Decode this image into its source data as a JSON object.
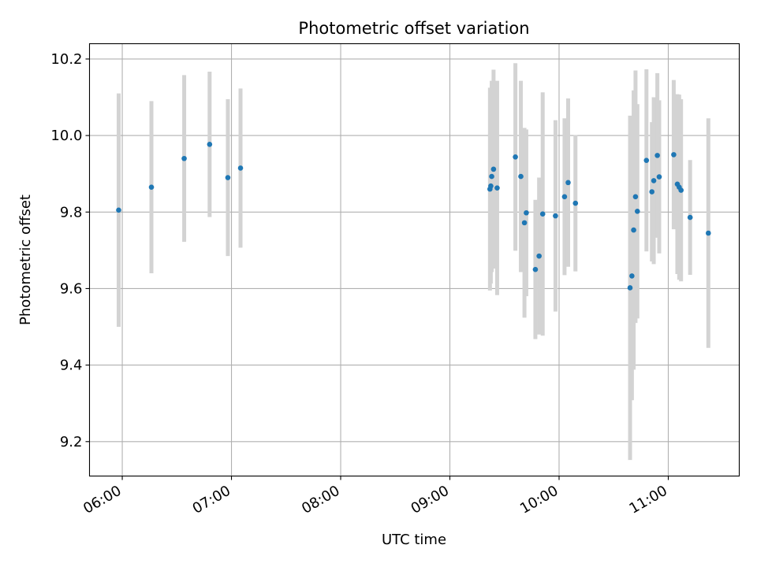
{
  "chart_data": {
    "type": "scatter",
    "title": "Photometric offset variation",
    "xlabel": "UTC time",
    "ylabel": "Photometric offset",
    "x_unit": "UTC hours (decimal)",
    "xlim": [
      5.7,
      11.65
    ],
    "ylim": [
      9.11,
      10.24
    ],
    "x_ticks": [
      6,
      7,
      8,
      9,
      10,
      11
    ],
    "x_tick_labels": [
      "06:00",
      "07:00",
      "08:00",
      "09:00",
      "10:00",
      "11:00"
    ],
    "y_ticks": [
      9.2,
      9.4,
      9.6,
      9.8,
      10.0,
      10.2
    ],
    "y_tick_labels": [
      "9.2",
      "9.4",
      "9.6",
      "9.8",
      "10.0",
      "10.2"
    ],
    "grid": true,
    "point_color": "#1f77b4",
    "errorbar_color": "#d3d3d3",
    "series": [
      {
        "points": [
          {
            "t": 5.967,
            "y": 9.805,
            "err": 0.305
          },
          {
            "t": 6.267,
            "y": 9.865,
            "err": 0.225
          },
          {
            "t": 6.567,
            "y": 9.94,
            "err": 0.218
          },
          {
            "t": 6.8,
            "y": 9.977,
            "err": 0.19
          },
          {
            "t": 6.967,
            "y": 9.89,
            "err": 0.205
          },
          {
            "t": 7.083,
            "y": 9.915,
            "err": 0.208
          },
          {
            "t": 9.367,
            "y": 9.86,
            "err": 0.265
          },
          {
            "t": 9.375,
            "y": 9.868,
            "err": 0.255
          },
          {
            "t": 9.383,
            "y": 9.893,
            "err": 0.25
          },
          {
            "t": 9.4,
            "y": 9.912,
            "err": 0.26
          },
          {
            "t": 9.433,
            "y": 9.863,
            "err": 0.28
          },
          {
            "t": 9.6,
            "y": 9.944,
            "err": 0.245
          },
          {
            "t": 9.65,
            "y": 9.893,
            "err": 0.25
          },
          {
            "t": 9.683,
            "y": 9.772,
            "err": 0.248
          },
          {
            "t": 9.7,
            "y": 9.798,
            "err": 0.218
          },
          {
            "t": 9.783,
            "y": 9.65,
            "err": 0.182
          },
          {
            "t": 9.817,
            "y": 9.685,
            "err": 0.205
          },
          {
            "t": 9.85,
            "y": 9.795,
            "err": 0.318
          },
          {
            "t": 9.967,
            "y": 9.79,
            "err": 0.25
          },
          {
            "t": 10.05,
            "y": 9.84,
            "err": 0.205
          },
          {
            "t": 10.083,
            "y": 9.877,
            "err": 0.22
          },
          {
            "t": 10.15,
            "y": 9.823,
            "err": 0.178
          },
          {
            "t": 10.65,
            "y": 9.602,
            "err": 0.45
          },
          {
            "t": 10.667,
            "y": 9.633,
            "err": 0.325
          },
          {
            "t": 10.683,
            "y": 9.753,
            "err": 0.365
          },
          {
            "t": 10.7,
            "y": 9.84,
            "err": 0.33
          },
          {
            "t": 10.717,
            "y": 9.802,
            "err": 0.28
          },
          {
            "t": 10.8,
            "y": 9.935,
            "err": 0.238
          },
          {
            "t": 10.85,
            "y": 9.853,
            "err": 0.182
          },
          {
            "t": 10.867,
            "y": 9.882,
            "err": 0.218
          },
          {
            "t": 10.9,
            "y": 9.948,
            "err": 0.215
          },
          {
            "t": 10.917,
            "y": 9.892,
            "err": 0.2
          },
          {
            "t": 11.05,
            "y": 9.95,
            "err": 0.195
          },
          {
            "t": 11.083,
            "y": 9.873,
            "err": 0.235
          },
          {
            "t": 11.1,
            "y": 9.865,
            "err": 0.242
          },
          {
            "t": 11.117,
            "y": 9.857,
            "err": 0.238
          },
          {
            "t": 11.2,
            "y": 9.786,
            "err": 0.15
          },
          {
            "t": 11.367,
            "y": 9.745,
            "err": 0.3
          }
        ]
      }
    ]
  }
}
